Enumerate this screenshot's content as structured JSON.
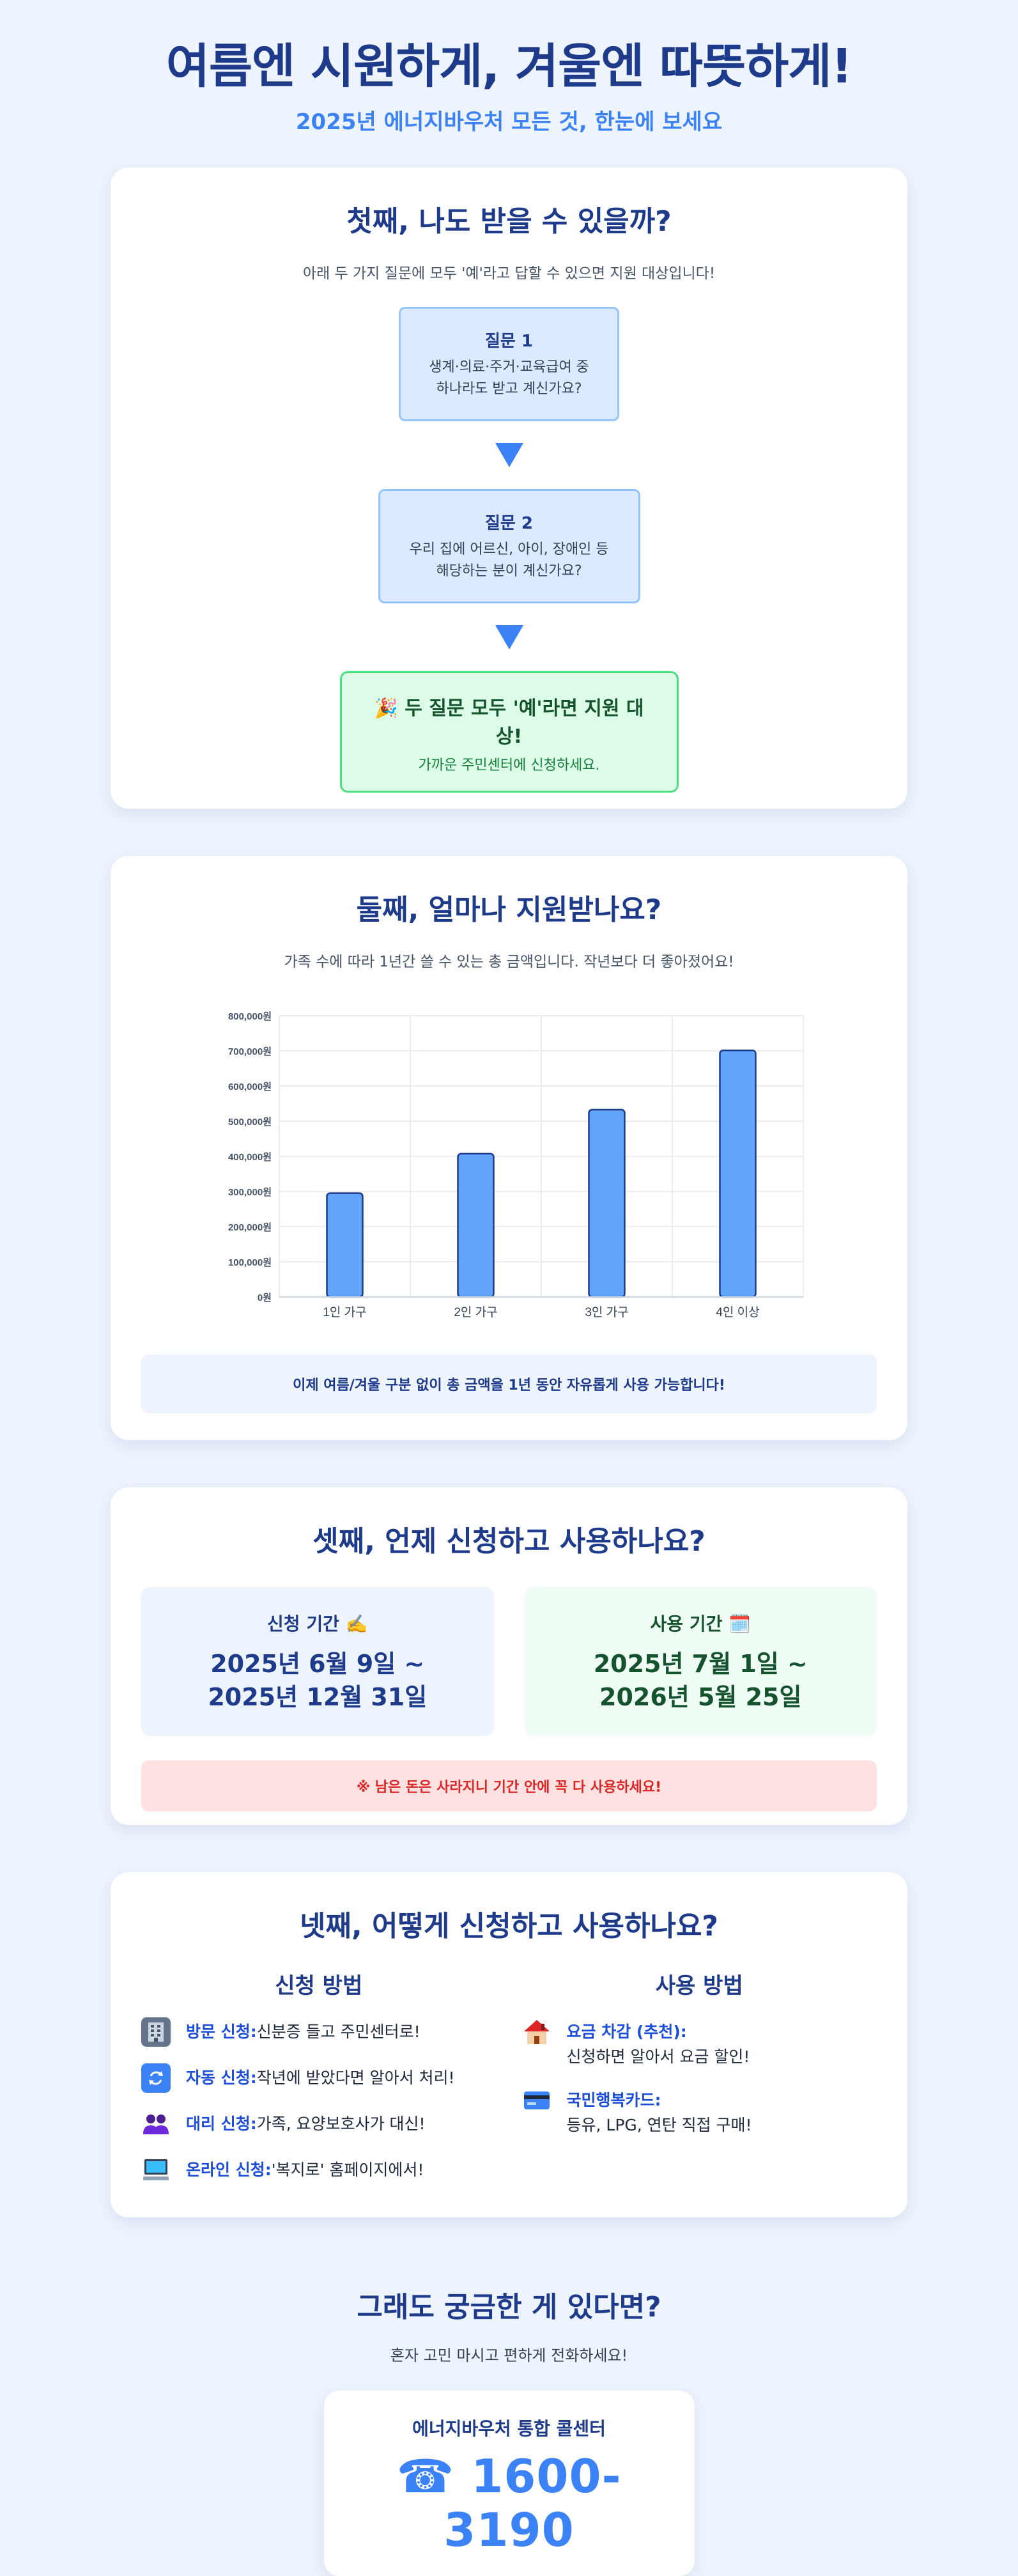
{
  "hero": {
    "title": "여름엔 시원하게, 겨울엔 따뜻하게!",
    "subtitle": "2025년 에너지바우처 모든 것, 한눈에 보세요"
  },
  "section1": {
    "title": "첫째, 나도 받을 수 있을까?",
    "desc": "아래 두 가지 질문에 모두 '예'라고 답할 수 있으면 지원 대상입니다!",
    "q1": {
      "title": "질문 1",
      "line1": "생계·의료·주거·교육급여 중",
      "line2": "하나라도 받고 계신가요?"
    },
    "q2": {
      "title": "질문 2",
      "line1": "우리 집에 어르신, 아이, 장애인 등",
      "line2": "해당하는 분이 계신가요?"
    },
    "result": {
      "icon": "party-popper-icon",
      "title": "🎉 두 질문 모두 '예'라면 지원 대상!",
      "text": "가까운 주민센터에 신청하세요."
    }
  },
  "section2": {
    "title": "둘째, 얼마나 지원받나요?",
    "desc": "가족 수에 따라 1년간 쓸 수 있는 총 금액입니다. 작년보다 더 좋아졌어요!",
    "note": "이제 여름/겨울 구분 없이 총 금액을 1년 동안 자유롭게 사용 가능합니다!"
  },
  "chart_data": {
    "type": "bar",
    "categories": [
      "1인 가구",
      "2인 가구",
      "3인 가구",
      "4인 이상"
    ],
    "values": [
      295200,
      407500,
      532700,
      701300
    ],
    "ylim": [
      0,
      800000
    ],
    "yticks": [
      "0원",
      "100,000원",
      "200,000원",
      "300,000원",
      "400,000원",
      "500,000원",
      "600,000원",
      "700,000원",
      "800,000원"
    ],
    "grid": true,
    "bar_color": "#60a5fa",
    "bar_border": "#1e3a8a"
  },
  "section3": {
    "title": "셋째, 언제 신청하고 사용하나요?",
    "apply": {
      "label": "신청 기간 ✍️",
      "line1": "2025년 6월 9일 ~",
      "line2": "2025년 12월 31일"
    },
    "use": {
      "label": "사용 기간 🗓️",
      "line1": "2025년 7월 1일 ~",
      "line2": "2026년 5월 25일"
    },
    "note": "※ 남은 돈은 사라지니 기간 안에 꼭 다 사용하세요!"
  },
  "section4": {
    "title": "넷째, 어떻게 신청하고 사용하나요?",
    "apply_title": "신청 방법",
    "use_title": "사용 방법",
    "apply_items": [
      {
        "icon": "building-icon",
        "bold": "방문 신청:",
        "text": "신분증 들고 주민센터로!"
      },
      {
        "icon": "repeat-icon",
        "bold": "자동 신청:",
        "text": "작년에 받았다면 알아서 처리!"
      },
      {
        "icon": "people-icon",
        "bold": "대리 신청:",
        "text": "가족, 요양보호사가 대신!"
      },
      {
        "icon": "computer-icon",
        "bold": "온라인 신청:",
        "text": "'복지로' 홈페이지에서!"
      }
    ],
    "use_items": [
      {
        "icon": "house-icon",
        "bold": "요금 차감 (추천):",
        "text": "신청하면 알아서 요금 할인!"
      },
      {
        "icon": "card-icon",
        "bold": "국민행복카드:",
        "text": "등유, LPG, 연탄 직접 구매!"
      }
    ]
  },
  "contact": {
    "title": "그래도 궁금한 게 있다면?",
    "sub": "혼자 고민 마시고 편하게 전화하세요!",
    "label": "에너지바우처 통합 콜센터",
    "number": "☎ 1600-3190"
  },
  "colors": {
    "primary": "#1e3a8a",
    "accent": "#3b82f6",
    "green": "#14532d",
    "red": "#dc2626"
  }
}
